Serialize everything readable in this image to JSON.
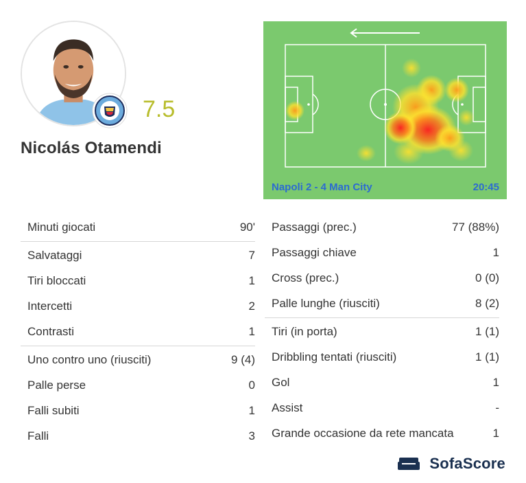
{
  "player": {
    "name": "Nicolás Otamendi",
    "rating": "7.5"
  },
  "heatmap": {
    "match": "Napoli 2 - 4 Man City",
    "time": "20:45",
    "attack_direction": "left"
  },
  "stats_left": [
    {
      "label": "Minuti giocati",
      "value": "90'"
    },
    {
      "label": "Salvataggi",
      "value": "7"
    },
    {
      "label": "Tiri bloccati",
      "value": "1"
    },
    {
      "label": "Intercetti",
      "value": "2"
    },
    {
      "label": "Contrasti",
      "value": "1"
    },
    {
      "label": "Uno contro uno (riusciti)",
      "value": "9 (4)"
    },
    {
      "label": "Palle perse",
      "value": "0"
    },
    {
      "label": "Falli subiti",
      "value": "1"
    },
    {
      "label": "Falli",
      "value": "3"
    }
  ],
  "stats_right": [
    {
      "label": "Passaggi (prec.)",
      "value": "77 (88%)"
    },
    {
      "label": "Passaggi chiave",
      "value": "1"
    },
    {
      "label": "Cross (prec.)",
      "value": "0 (0)"
    },
    {
      "label": "Palle lunghe (riusciti)",
      "value": "8 (2)"
    },
    {
      "label": "Tiri (in porta)",
      "value": "1 (1)"
    },
    {
      "label": "Dribbling tentati (riusciti)",
      "value": "1 (1)"
    },
    {
      "label": "Gol",
      "value": "1"
    },
    {
      "label": "Assist",
      "value": "-"
    },
    {
      "label": "Grande occasione da rete mancata",
      "value": "1"
    }
  ],
  "brand": {
    "name": "SofaScore"
  },
  "colors": {
    "rating": "#b8bd2c",
    "pitch": "#7bc96e",
    "match_text": "#2c6bd1",
    "brand": "#1a3050"
  }
}
